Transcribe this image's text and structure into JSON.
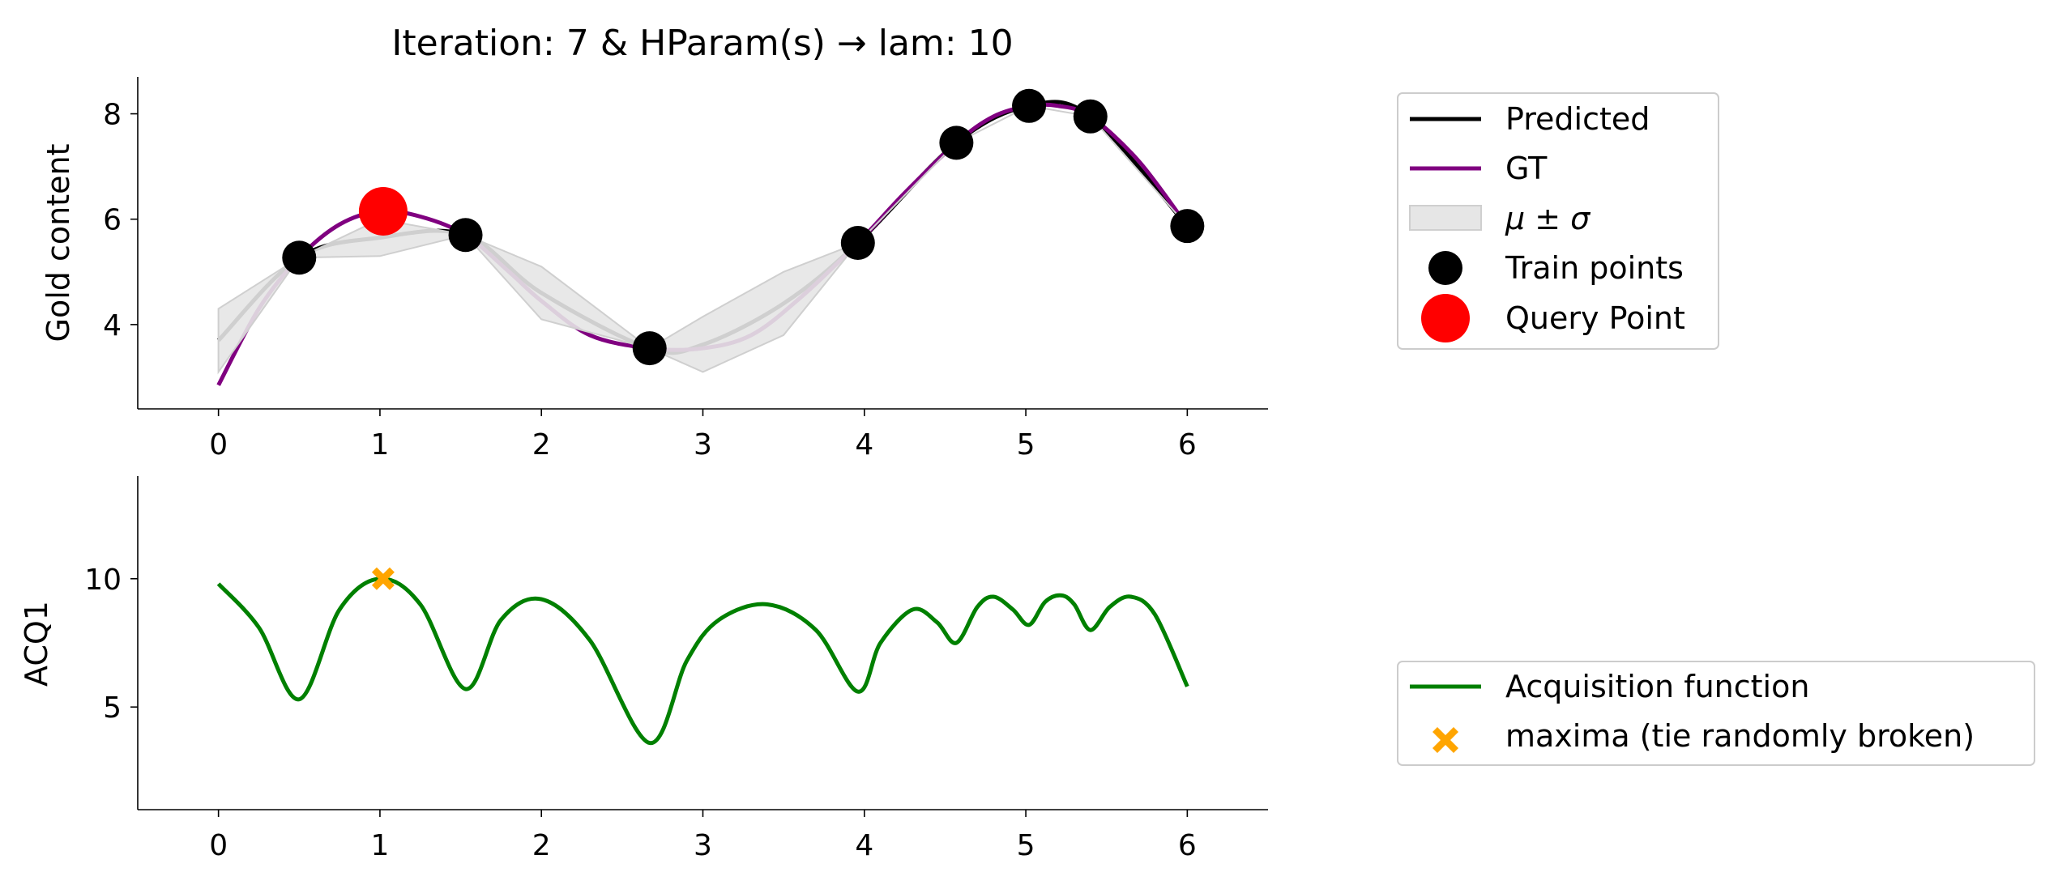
{
  "chart_data": [
    {
      "type": "line",
      "title": "Iteration: 7 & HParam(s) → lam: 10",
      "ylabel": "Gold content",
      "xlabel": "",
      "xlim": [
        -0.5,
        6.5
      ],
      "ylim": [
        2.4,
        8.7
      ],
      "xticks": [
        0,
        1,
        2,
        3,
        4,
        5,
        6
      ],
      "yticks": [
        4,
        6,
        8
      ],
      "grid": false,
      "legend_position": "outside-right",
      "series": [
        {
          "name": "Predicted",
          "kind": "line",
          "color": "#000000",
          "x": [
            0,
            0.5,
            1.0,
            1.53,
            2.0,
            2.67,
            3.0,
            3.5,
            3.96,
            4.57,
            5.02,
            5.4,
            6.0
          ],
          "y": [
            3.7,
            5.27,
            5.65,
            5.7,
            4.6,
            3.55,
            3.62,
            4.4,
            5.55,
            7.45,
            8.15,
            7.95,
            5.87
          ]
        },
        {
          "name": "GT",
          "kind": "line",
          "color": "#800080",
          "x": [
            0,
            0.25,
            0.5,
            0.75,
            1.0,
            1.25,
            1.53,
            1.8,
            2.0,
            2.3,
            2.67,
            3.0,
            3.3,
            3.6,
            3.96,
            4.25,
            4.57,
            4.8,
            5.02,
            5.2,
            5.4,
            5.7,
            6.0
          ],
          "y": [
            2.85,
            4.3,
            5.27,
            5.9,
            6.15,
            6.05,
            5.7,
            5.0,
            4.45,
            3.8,
            3.55,
            3.55,
            3.8,
            4.5,
            5.55,
            6.5,
            7.45,
            7.95,
            8.15,
            8.15,
            7.95,
            7.1,
            5.87
          ]
        },
        {
          "name": "μ ± σ",
          "kind": "band",
          "color": "#e6e6e6",
          "x": [
            0,
            0.5,
            1.0,
            1.53,
            2.0,
            2.67,
            3.0,
            3.5,
            3.96,
            4.57,
            5.02,
            5.4,
            6.0
          ],
          "lower": [
            3.1,
            5.27,
            5.3,
            5.7,
            4.1,
            3.55,
            3.1,
            3.8,
            5.55,
            7.45,
            8.15,
            7.95,
            5.87
          ],
          "upper": [
            4.3,
            5.27,
            6.0,
            5.7,
            5.1,
            3.55,
            4.15,
            5.0,
            5.55,
            7.45,
            8.15,
            7.95,
            5.87
          ]
        },
        {
          "name": "Train points",
          "kind": "scatter",
          "color": "#000000",
          "x": [
            0.5,
            1.53,
            2.67,
            3.96,
            4.57,
            5.02,
            5.4,
            6.0
          ],
          "y": [
            5.27,
            5.7,
            3.55,
            5.55,
            7.45,
            8.15,
            7.95,
            5.87
          ]
        },
        {
          "name": "Query Point",
          "kind": "scatter",
          "color": "#ff0000",
          "x": [
            1.02
          ],
          "y": [
            6.15
          ]
        }
      ]
    },
    {
      "type": "line",
      "title": "",
      "ylabel": "ACQ1",
      "xlabel": "",
      "xlim": [
        -0.5,
        6.5
      ],
      "ylim": [
        1.0,
        14.0
      ],
      "xticks": [
        0,
        1,
        2,
        3,
        4,
        5,
        6
      ],
      "yticks": [
        5,
        10
      ],
      "grid": false,
      "legend_position": "outside-right",
      "series": [
        {
          "name": "Acquisition function",
          "kind": "line",
          "color": "#008000",
          "x": [
            0,
            0.25,
            0.5,
            0.75,
            1.0,
            1.25,
            1.53,
            1.75,
            2.0,
            2.3,
            2.67,
            2.9,
            3.1,
            3.4,
            3.7,
            3.96,
            4.1,
            4.3,
            4.45,
            4.57,
            4.7,
            4.8,
            4.92,
            5.02,
            5.12,
            5.22,
            5.3,
            5.4,
            5.52,
            5.65,
            5.8,
            6.0
          ],
          "y": [
            9.8,
            8.1,
            5.3,
            8.8,
            10.0,
            9.0,
            5.7,
            8.4,
            9.2,
            7.6,
            3.6,
            6.8,
            8.4,
            9.0,
            8.0,
            5.6,
            7.5,
            8.8,
            8.3,
            7.5,
            8.9,
            9.3,
            8.8,
            8.2,
            9.1,
            9.35,
            9.0,
            8.0,
            8.9,
            9.3,
            8.6,
            5.8
          ]
        },
        {
          "name": "maxima (tie randomly broken)",
          "kind": "scatter",
          "marker": "X",
          "color": "#ffa500",
          "x": [
            1.02
          ],
          "y": [
            10.0
          ]
        }
      ]
    }
  ]
}
